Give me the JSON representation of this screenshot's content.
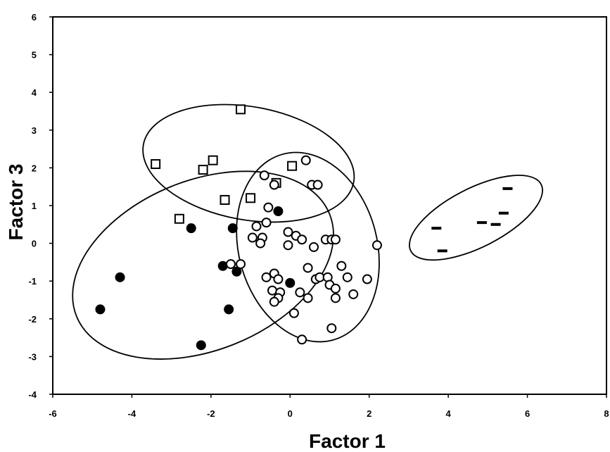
{
  "chart_data": {
    "type": "scatter",
    "xlabel": "Factor 1",
    "ylabel": "Factor 3",
    "xlim": [
      -6,
      8
    ],
    "ylim": [
      -4,
      6
    ],
    "x_ticks": [
      -6,
      -4,
      -2,
      0,
      2,
      4,
      6,
      8
    ],
    "y_ticks": [
      -4,
      -3,
      -2,
      -1,
      0,
      1,
      2,
      3,
      4,
      5,
      6
    ],
    "x_tick_labels": [
      "-6",
      "-4",
      "-2",
      "0",
      "2",
      "4",
      "6",
      "8"
    ],
    "y_tick_labels": [
      "-4",
      "-3",
      "-2",
      "-1",
      "0",
      "1",
      "2",
      "3",
      "4",
      "5",
      "6"
    ],
    "grid": false,
    "legend": "none",
    "series": [
      {
        "marker": "open-square",
        "points": [
          {
            "x": -1.25,
            "y": 3.55
          },
          {
            "x": -3.4,
            "y": 2.1
          },
          {
            "x": -2.2,
            "y": 1.95
          },
          {
            "x": -1.95,
            "y": 2.2
          },
          {
            "x": 0.05,
            "y": 2.05
          },
          {
            "x": -0.35,
            "y": 1.6
          },
          {
            "x": -1.65,
            "y": 1.15
          },
          {
            "x": -1.0,
            "y": 1.2
          },
          {
            "x": -2.8,
            "y": 0.65
          }
        ]
      },
      {
        "marker": "filled-circle",
        "points": [
          {
            "x": -2.5,
            "y": 0.4
          },
          {
            "x": -1.45,
            "y": 0.4
          },
          {
            "x": -0.3,
            "y": 0.85
          },
          {
            "x": -1.7,
            "y": -0.6
          },
          {
            "x": -1.35,
            "y": -0.75
          },
          {
            "x": -4.3,
            "y": -0.9
          },
          {
            "x": 0.0,
            "y": -1.05
          },
          {
            "x": -4.8,
            "y": -1.75
          },
          {
            "x": -1.55,
            "y": -1.75
          },
          {
            "x": -2.25,
            "y": -2.7
          }
        ]
      },
      {
        "marker": "open-circle",
        "points": [
          {
            "x": 0.4,
            "y": 2.2
          },
          {
            "x": -0.65,
            "y": 1.8
          },
          {
            "x": -0.4,
            "y": 1.55
          },
          {
            "x": 0.55,
            "y": 1.55
          },
          {
            "x": 0.7,
            "y": 1.55
          },
          {
            "x": -0.55,
            "y": 0.95
          },
          {
            "x": -0.6,
            "y": 0.55
          },
          {
            "x": -0.85,
            "y": 0.45
          },
          {
            "x": -0.05,
            "y": 0.3
          },
          {
            "x": 0.15,
            "y": 0.2
          },
          {
            "x": -0.95,
            "y": 0.15
          },
          {
            "x": -0.7,
            "y": 0.15
          },
          {
            "x": 0.3,
            "y": 0.1
          },
          {
            "x": 0.9,
            "y": 0.1
          },
          {
            "x": 1.05,
            "y": 0.1
          },
          {
            "x": 1.15,
            "y": 0.1
          },
          {
            "x": -0.75,
            "y": 0.0
          },
          {
            "x": -0.05,
            "y": -0.05
          },
          {
            "x": 0.6,
            "y": -0.1
          },
          {
            "x": 2.2,
            "y": -0.05
          },
          {
            "x": -1.5,
            "y": -0.55
          },
          {
            "x": -1.25,
            "y": -0.55
          },
          {
            "x": 0.45,
            "y": -0.65
          },
          {
            "x": 1.3,
            "y": -0.6
          },
          {
            "x": -0.6,
            "y": -0.9
          },
          {
            "x": -0.4,
            "y": -0.8
          },
          {
            "x": -0.3,
            "y": -0.95
          },
          {
            "x": 0.65,
            "y": -0.95
          },
          {
            "x": 0.75,
            "y": -0.9
          },
          {
            "x": 0.95,
            "y": -0.9
          },
          {
            "x": 1.45,
            "y": -0.9
          },
          {
            "x": 1.95,
            "y": -0.95
          },
          {
            "x": 1.0,
            "y": -1.1
          },
          {
            "x": 1.15,
            "y": -1.2
          },
          {
            "x": -0.45,
            "y": -1.25
          },
          {
            "x": -0.25,
            "y": -1.3
          },
          {
            "x": 0.25,
            "y": -1.3
          },
          {
            "x": 1.6,
            "y": -1.35
          },
          {
            "x": -0.3,
            "y": -1.45
          },
          {
            "x": 0.45,
            "y": -1.45
          },
          {
            "x": 1.15,
            "y": -1.45
          },
          {
            "x": -0.4,
            "y": -1.55
          },
          {
            "x": 0.1,
            "y": -1.85
          },
          {
            "x": 1.05,
            "y": -2.25
          },
          {
            "x": 0.3,
            "y": -2.55
          }
        ]
      },
      {
        "marker": "dash",
        "points": [
          {
            "x": 5.5,
            "y": 1.45
          },
          {
            "x": 5.4,
            "y": 0.8
          },
          {
            "x": 4.85,
            "y": 0.55
          },
          {
            "x": 5.2,
            "y": 0.5
          },
          {
            "x": 3.7,
            "y": 0.4
          },
          {
            "x": 3.85,
            "y": -0.2
          }
        ]
      }
    ],
    "ellipses": [
      {
        "cx": -1.05,
        "cy": 2.12,
        "rx": 2.7,
        "ry": 1.5,
        "angle": -10
      },
      {
        "cx": -2.2,
        "cy": -0.58,
        "rx": 3.45,
        "ry": 2.25,
        "angle": 22
      },
      {
        "cx": 0.45,
        "cy": -0.1,
        "rx": 1.75,
        "ry": 2.55,
        "angle": 15
      },
      {
        "cx": 4.7,
        "cy": 0.68,
        "rx": 1.85,
        "ry": 0.78,
        "angle": 27
      }
    ]
  }
}
